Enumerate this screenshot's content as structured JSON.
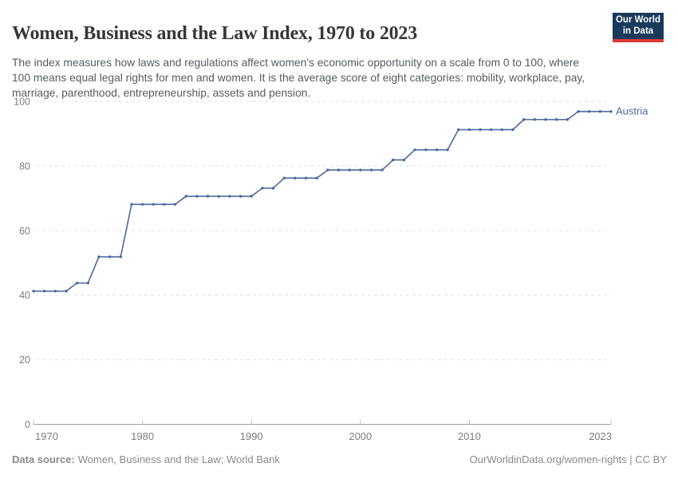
{
  "header": {
    "title": "Women, Business and the Law Index, 1970 to 2023",
    "subtitle": "The index measures how laws and regulations affect women's economic opportunity on a scale from 0 to 100, where 100 means equal legal rights for men and women. It is the average score of eight categories: mobility, workplace, pay, marriage, parenthood, entrepreneurship, assets and pension.",
    "logo": {
      "line1": "Our World",
      "line2": "in Data",
      "bg_color": "#1a3a5c",
      "accent_color": "#dc3a34"
    }
  },
  "chart_data": {
    "type": "line",
    "title": "Women, Business and the Law Index, 1970 to 2023",
    "xlabel": "",
    "ylabel": "",
    "xlim": [
      1970,
      2023
    ],
    "ylim": [
      0,
      100
    ],
    "yticks": [
      0,
      20,
      40,
      60,
      80,
      100
    ],
    "xticks": [
      1970,
      1980,
      1990,
      2000,
      2010,
      2023
    ],
    "grid": "horizontal-dashed",
    "legend": "end-of-line-label",
    "x": [
      1970,
      1971,
      1972,
      1973,
      1974,
      1975,
      1976,
      1977,
      1978,
      1979,
      1980,
      1981,
      1982,
      1983,
      1984,
      1985,
      1986,
      1987,
      1988,
      1989,
      1990,
      1991,
      1992,
      1993,
      1994,
      1995,
      1996,
      1997,
      1998,
      1999,
      2000,
      2001,
      2002,
      2003,
      2004,
      2005,
      2006,
      2007,
      2008,
      2009,
      2010,
      2011,
      2012,
      2013,
      2014,
      2015,
      2016,
      2017,
      2018,
      2019,
      2020,
      2021,
      2022,
      2023
    ],
    "series": [
      {
        "name": "Austria",
        "color": "#4c6a9c",
        "values": [
          41.25,
          41.25,
          41.25,
          41.25,
          43.75,
          43.75,
          51.875,
          51.875,
          51.875,
          68.125,
          68.125,
          68.125,
          68.125,
          68.125,
          70.625,
          70.625,
          70.625,
          70.625,
          70.625,
          70.625,
          70.625,
          73.125,
          73.125,
          76.25,
          76.25,
          76.25,
          76.25,
          78.75,
          78.75,
          78.75,
          78.75,
          78.75,
          78.75,
          81.875,
          81.875,
          85,
          85,
          85,
          85,
          91.25,
          91.25,
          91.25,
          91.25,
          91.25,
          91.25,
          94.375,
          94.375,
          94.375,
          94.375,
          94.375,
          96.875,
          96.875,
          96.875,
          96.875
        ]
      }
    ],
    "colors": {
      "gridline": "#e2e2e2",
      "axis_line": "#9c9c9c",
      "tick": "#c2c2c2",
      "axis_text": "#7e7e7e"
    }
  },
  "footer": {
    "source_label": "Data source:",
    "source_value": "Women, Business and the Law; World Bank",
    "right_text": "OurWorldinData.org/women-rights | CC BY"
  }
}
